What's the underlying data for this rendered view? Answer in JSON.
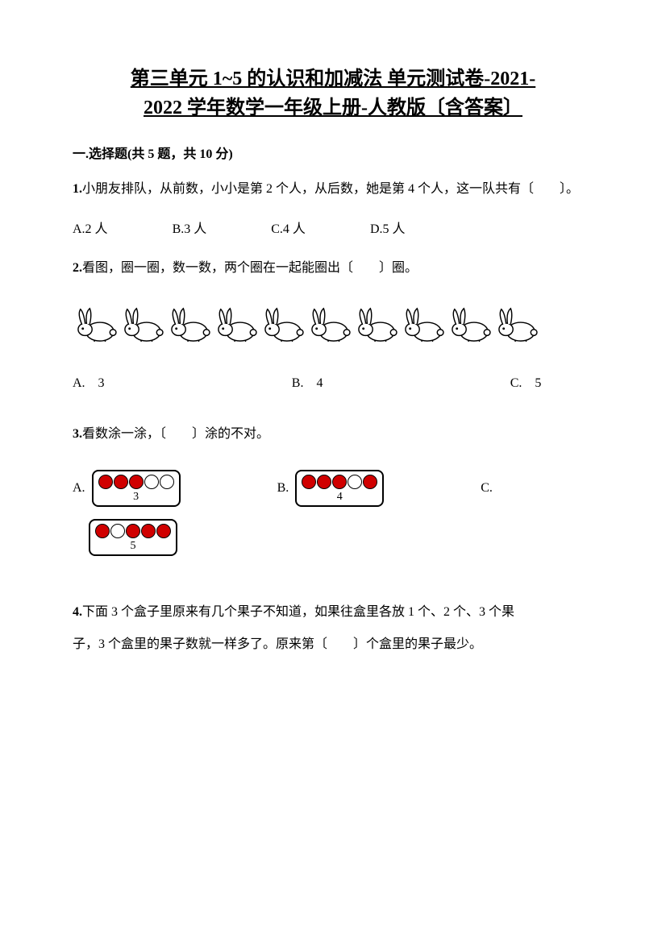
{
  "title_line1": "第三单元 1~5 的认识和加减法 单元测试卷-2021-",
  "title_line2": "2022 学年数学一年级上册-人教版〔含答案〕",
  "section1": {
    "header": "一.选择题(共 5 题，共 10 分)"
  },
  "q1": {
    "num": "1.",
    "text": "小朋友排队，从前数，小小是第 2 个人，从后数，她是第 4 个人，这一队共有〔　　〕。",
    "optA": "A.2 人",
    "optB": "B.3 人",
    "optC": "C.4 人",
    "optD": "D.5 人"
  },
  "q2": {
    "num": "2.",
    "text": "看图，圈一圈，数一数，两个圈在一起能圈出〔　　〕圈。",
    "rabbit_count": 10,
    "optA": "A.　3",
    "optB": "B.　4",
    "optC": "C.　5"
  },
  "q3": {
    "num": "3.",
    "text": "看数涂一涂，〔　　〕涂的不对。",
    "optA_label": "A.",
    "optB_label": "B.",
    "optC_label": "C.",
    "boxA": {
      "dots": [
        "filled",
        "filled",
        "filled",
        "empty",
        "empty"
      ],
      "number": "3"
    },
    "boxB": {
      "dots": [
        "filled",
        "filled",
        "filled",
        "empty",
        "filled"
      ],
      "number": "4"
    },
    "boxC": {
      "dots": [
        "filled",
        "empty",
        "filled",
        "filled",
        "filled"
      ],
      "number": "5"
    },
    "colors": {
      "filled": "#d00000",
      "border": "#000000"
    }
  },
  "q4": {
    "num": "4.",
    "text1": "下面 3 个盒子里原来有几个果子不知道，如果往盒里各放 1 个、2 个、3 个果",
    "text2": "子，3 个盒里的果子数就一样多了。原来第〔　　〕个盒里的果子最少。"
  }
}
